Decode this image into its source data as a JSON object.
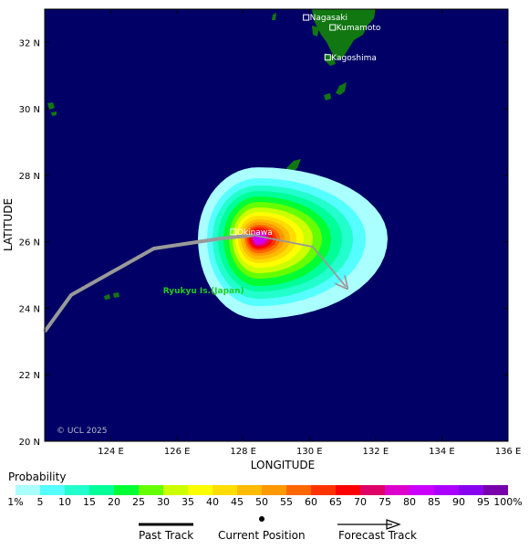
{
  "map": {
    "xlabel": "LONGITUDE",
    "ylabel": "LATITUDE",
    "x_ticks": [
      "124 E",
      "126 E",
      "128 E",
      "130 E",
      "132 E",
      "134 E",
      "136 E"
    ],
    "y_ticks": [
      "32 N",
      "30 N",
      "28 N",
      "26 N",
      "24 N",
      "22 N",
      "20 N"
    ],
    "lon_range": [
      122,
      136
    ],
    "lat_range": [
      20,
      33
    ],
    "copyright": "© UCL 2025",
    "ocean_color": "#000066",
    "land_color": "#117711",
    "cities": [
      {
        "name": "Nagasaki",
        "lon": 129.9,
        "lat": 32.75
      },
      {
        "name": "Kumamoto",
        "lon": 130.7,
        "lat": 32.45
      },
      {
        "name": "Kagoshima",
        "lon": 130.55,
        "lat": 31.55
      },
      {
        "name": "Okinawa",
        "lon": 127.7,
        "lat": 26.3
      }
    ],
    "region_label": {
      "text": "Ryukyu Is.(Japan)",
      "lon": 126.8,
      "lat": 24.45
    },
    "past_track": [
      {
        "lon": 122.0,
        "lat": 23.3
      },
      {
        "lon": 122.8,
        "lat": 24.4
      },
      {
        "lon": 125.3,
        "lat": 25.8
      },
      {
        "lon": 127.3,
        "lat": 26.1
      },
      {
        "lon": 128.3,
        "lat": 26.2
      }
    ],
    "forecast_track": [
      {
        "lon": 128.3,
        "lat": 26.2
      },
      {
        "lon": 130.1,
        "lat": 25.85
      },
      {
        "lon": 131.1,
        "lat": 24.65
      }
    ],
    "track_color": "#999999",
    "probability_center": {
      "lon": 128.45,
      "lat": 26.1
    }
  },
  "legend": {
    "title": "Probability",
    "labels": [
      "1%",
      "5",
      "10",
      "15",
      "20",
      "25",
      "30",
      "35",
      "40",
      "45",
      "50",
      "55",
      "60",
      "65",
      "70",
      "75",
      "80",
      "85",
      "90",
      "95",
      "100%"
    ],
    "colors": [
      "#aaffff",
      "#55ffff",
      "#22ffcc",
      "#00ff99",
      "#00ff33",
      "#66ff00",
      "#ccff00",
      "#ffff00",
      "#ffdd00",
      "#ffbb00",
      "#ff9900",
      "#ff6600",
      "#ff3300",
      "#ff0000",
      "#dd0066",
      "#dd00cc",
      "#cc00ff",
      "#aa00ff",
      "#8800ee",
      "#7700aa"
    ],
    "past_track": "Past Track",
    "current_position": "Current Position",
    "forecast_track": "Forecast Track"
  }
}
